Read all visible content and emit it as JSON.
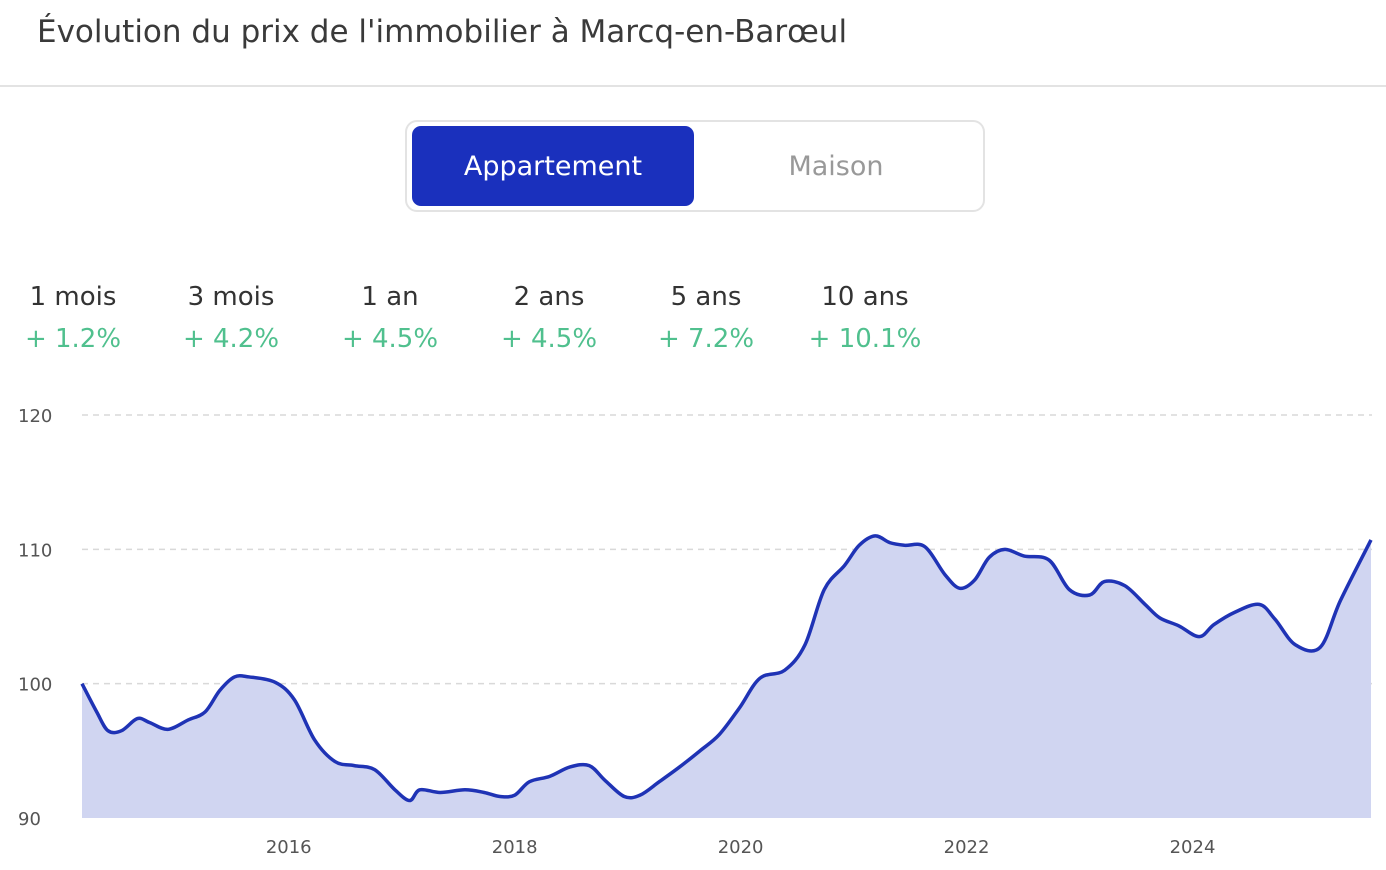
{
  "header": {
    "title": "Évolution du prix de l'immobilier à Marcq-en-Barœul"
  },
  "toggle": {
    "options": [
      "Appartement",
      "Maison"
    ]
  },
  "stats": [
    {
      "period": "1 mois",
      "change": "+ 1.2%"
    },
    {
      "period": "3 mois",
      "change": "+ 4.2%"
    },
    {
      "period": "1 an",
      "change": "+ 4.5%"
    },
    {
      "period": "2 ans",
      "change": "+ 4.5%"
    },
    {
      "period": "5 ans",
      "change": "+ 7.2%"
    },
    {
      "period": "10 ans",
      "change": "+ 10.1%"
    }
  ],
  "chart_data": {
    "type": "area",
    "x": [
      2014.17,
      2014.3,
      2014.4,
      2014.52,
      2014.66,
      2014.77,
      2014.93,
      2015.11,
      2015.26,
      2015.39,
      2015.52,
      2015.65,
      2015.88,
      2016.05,
      2016.23,
      2016.41,
      2016.58,
      2016.76,
      2016.94,
      2017.07,
      2017.16,
      2017.34,
      2017.56,
      2017.73,
      2017.87,
      2018.0,
      2018.13,
      2018.31,
      2018.49,
      2018.66,
      2018.8,
      2018.97,
      2019.11,
      2019.28,
      2019.46,
      2019.64,
      2019.81,
      2019.99,
      2020.17,
      2020.39,
      2020.57,
      2020.74,
      2020.92,
      2021.05,
      2021.19,
      2021.32,
      2021.45,
      2021.63,
      2021.81,
      2021.94,
      2022.07,
      2022.2,
      2022.34,
      2022.51,
      2022.73,
      2022.91,
      2023.09,
      2023.22,
      2023.4,
      2023.58,
      2023.71,
      2023.88,
      2024.06,
      2024.19,
      2024.37,
      2024.59,
      2024.73,
      2024.91,
      2025.13,
      2025.31,
      2025.58
    ],
    "values": [
      100.0,
      97.9,
      96.5,
      96.5,
      97.4,
      97.1,
      96.6,
      97.3,
      97.9,
      99.5,
      100.5,
      100.5,
      100.1,
      98.8,
      95.8,
      94.2,
      93.9,
      93.6,
      92.1,
      91.3,
      92.1,
      91.9,
      92.1,
      91.9,
      91.6,
      91.7,
      92.7,
      93.1,
      93.8,
      93.9,
      92.8,
      91.6,
      91.7,
      92.7,
      93.8,
      95.0,
      96.2,
      98.2,
      100.4,
      101.0,
      102.9,
      107.0,
      108.8,
      110.3,
      111.0,
      110.5,
      110.3,
      110.2,
      108.1,
      107.1,
      107.7,
      109.4,
      110.0,
      109.5,
      109.2,
      107.0,
      106.6,
      107.6,
      107.3,
      105.9,
      104.9,
      104.3,
      103.5,
      104.4,
      105.3,
      105.9,
      104.8,
      102.9,
      102.7,
      106.2,
      110.7
    ],
    "color": "#1f33b5",
    "fill": "#d0d5f1",
    "xlim": [
      2014.17,
      2025.58
    ],
    "xticks": [
      2016,
      2018,
      2020,
      2022,
      2024
    ],
    "ylim": [
      90,
      120
    ],
    "yticks": [
      90,
      100,
      110,
      120
    ],
    "grid": true
  }
}
